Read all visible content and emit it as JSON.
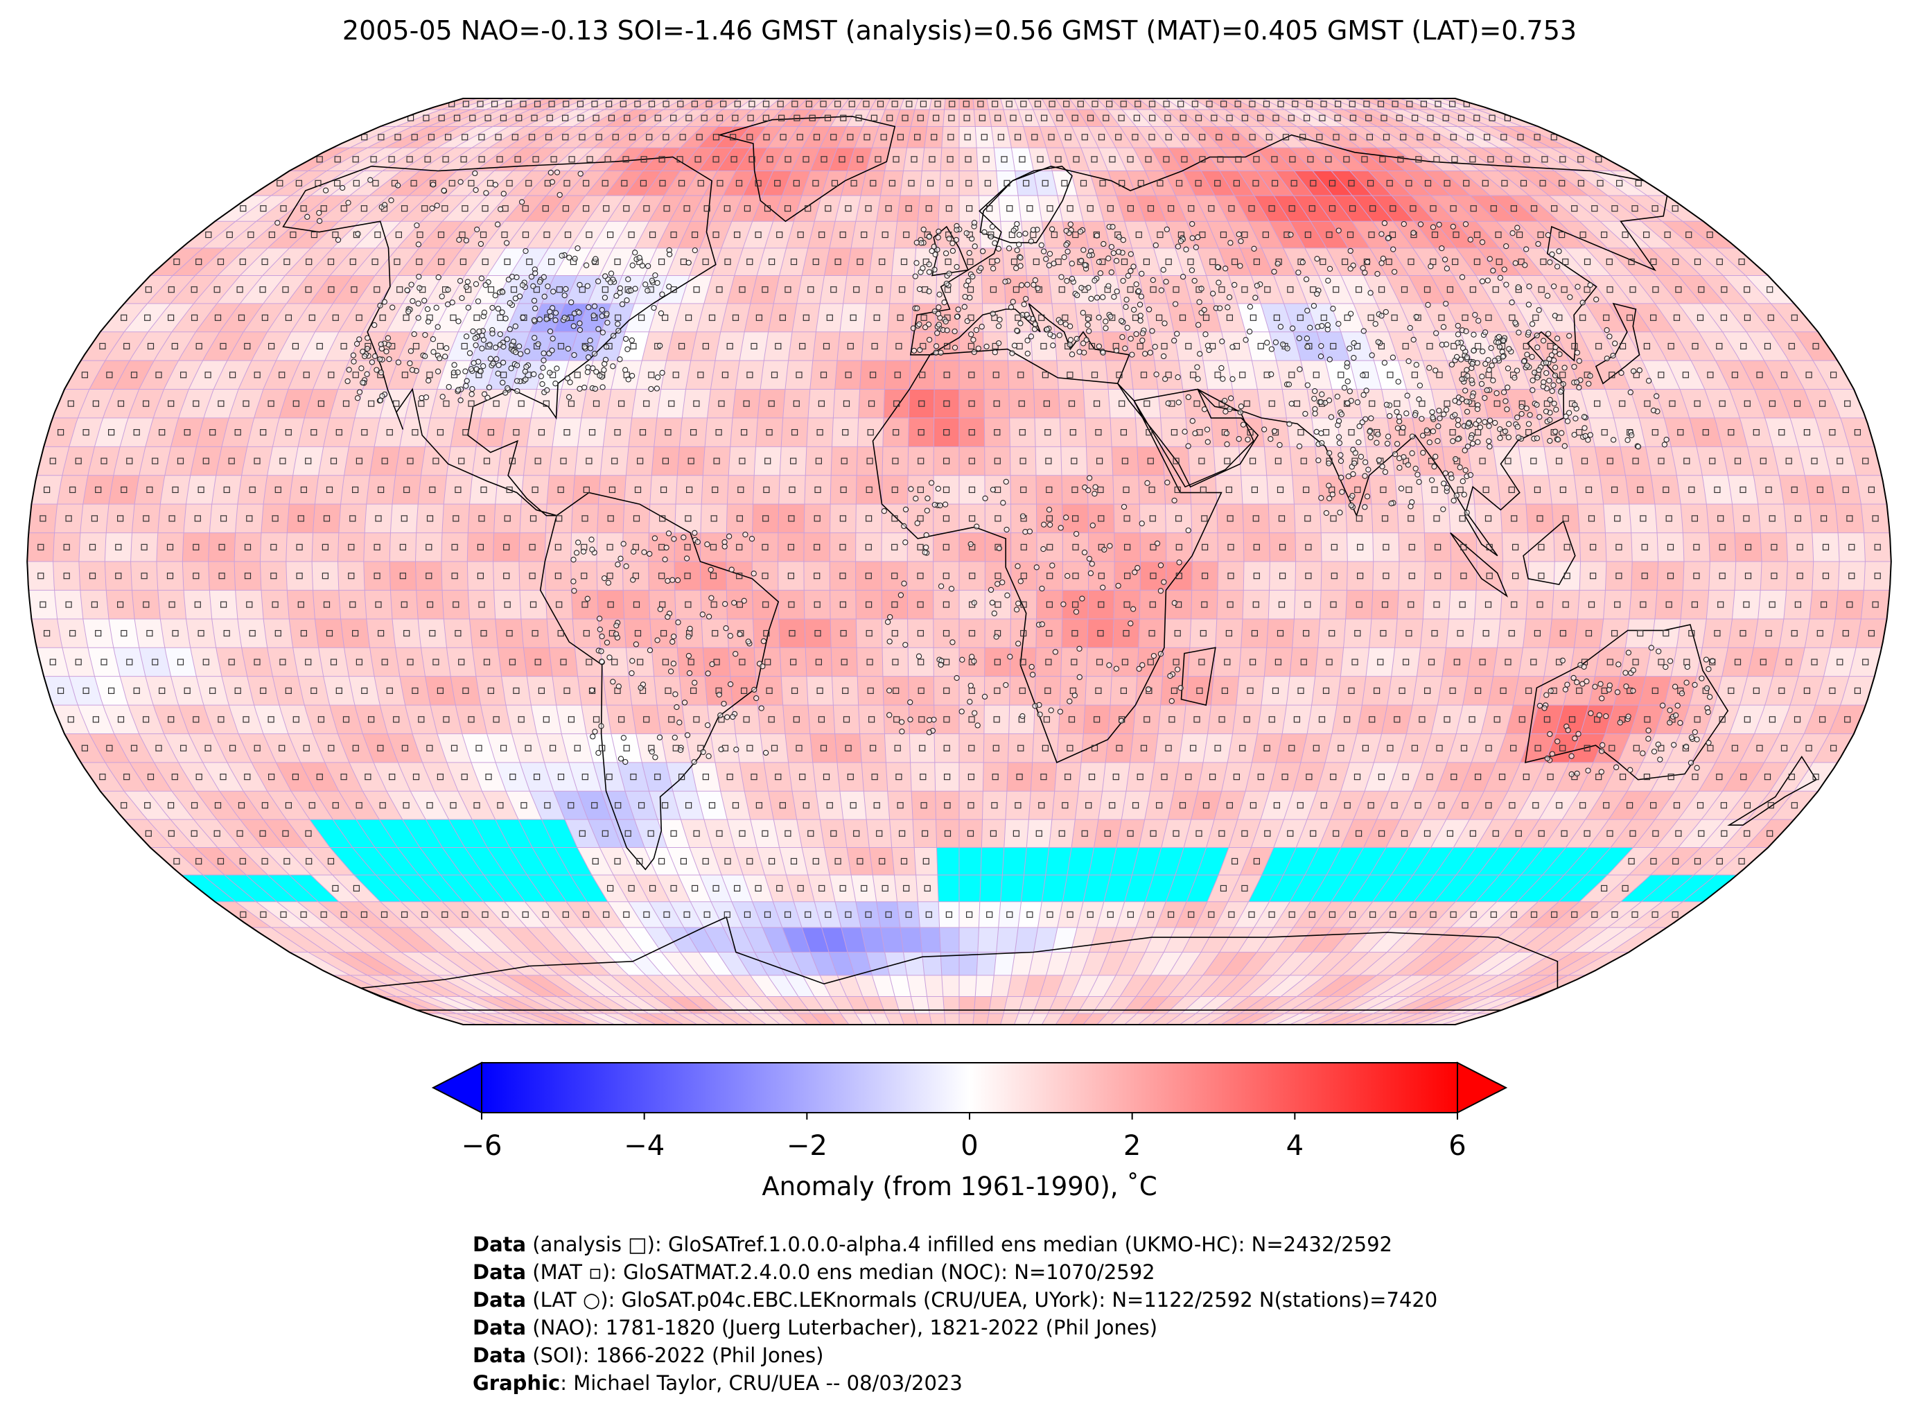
{
  "title": "2005-05 NAO=-0.13 SOI=-1.46 GMST (analysis)=0.56 GMST (MAT)=0.405 GMST (LAT)=0.753",
  "colorbar": {
    "label": "Anomaly (from 1961-1990), ˚C",
    "ticks": [
      "−6",
      "−4",
      "−2",
      "0",
      "2",
      "4",
      "6"
    ],
    "tick_values": [
      -6,
      -4,
      -2,
      0,
      2,
      4,
      6
    ],
    "range": [
      -6,
      6
    ],
    "colors": {
      "min": "#0000ff",
      "mid": "#ffffff",
      "max": "#ff0000"
    },
    "extend": "both"
  },
  "map": {
    "projection": "Robinson",
    "missing_color": "#00ffff",
    "coast_color": "#000000",
    "grid_color": "#c9a0dc"
  },
  "credits": [
    {
      "bold": "Data",
      "text": " (analysis □): GloSATref.1.0.0.0-alpha.4 infilled ens median (UKMO-HC): N=2432/2592"
    },
    {
      "bold": "Data",
      "text": " (MAT ▫): GloSATMAT.2.4.0.0 ens median (NOC): N=1070/2592"
    },
    {
      "bold": "Data",
      "text": " (LAT ○): GloSAT.p04c.EBC.LEKnormals (CRU/UEA, UYork): N=1122/2592 N(stations)=7420"
    },
    {
      "bold": "Data",
      "text": " (NAO): 1781-1820 (Juerg Luterbacher), 1821-2022 (Phil Jones)"
    },
    {
      "bold": "Data",
      "text": " (SOI): 1866-2022 (Phil Jones)"
    },
    {
      "bold": "Graphic",
      "text": ": Michael Taylor, CRU/UEA -- 08/03/2023"
    }
  ]
}
